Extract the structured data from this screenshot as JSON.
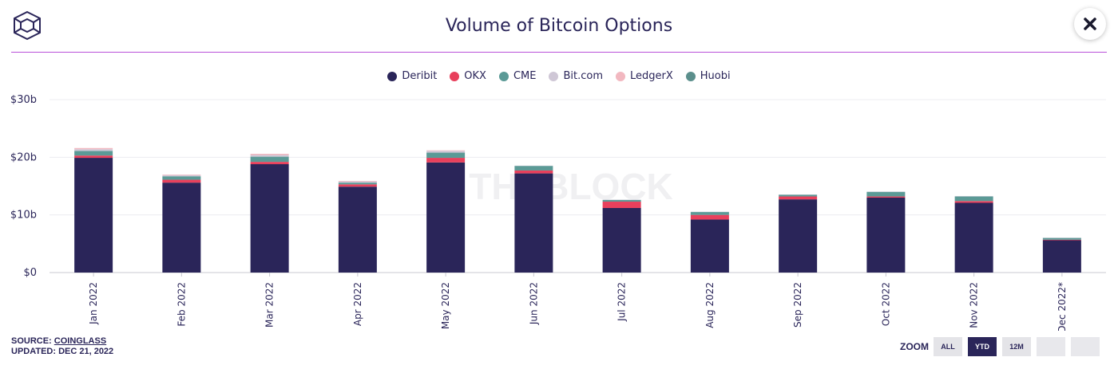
{
  "header": {
    "title": "Volume of Bitcoin Options",
    "logo_icon": "cube-logo-icon",
    "close_icon": "close-icon"
  },
  "watermark": "THEBLOCK",
  "footer": {
    "source_prefix": "SOURCE: ",
    "source_link": "COINGLASS",
    "updated": "UPDATED: DEC 21, 2022"
  },
  "zoom": {
    "label": "ZOOM",
    "buttons": [
      "ALL",
      "YTD",
      "12M",
      "",
      ""
    ],
    "active": "YTD"
  },
  "colors": {
    "deribit": "#2a2559",
    "okx": "#e8405c",
    "cme": "#5b9a96",
    "bitcom": "#cfc7d6",
    "ledgerx": "#f2b8c0",
    "huobi": "#5b8f8c"
  },
  "chart_data": {
    "type": "bar",
    "stacked": true,
    "categories": [
      "Jan 2022",
      "Feb 2022",
      "Mar 2022",
      "Apr 2022",
      "May 2022",
      "Jun 2022",
      "Jul 2022",
      "Aug 2022",
      "Sep 2022",
      "Oct 2022",
      "Nov 2022",
      "Dec 2022*"
    ],
    "series": [
      {
        "name": "Deribit",
        "color": "#2a2559",
        "values": [
          19.9,
          15.6,
          18.8,
          14.9,
          19.1,
          17.2,
          11.2,
          9.2,
          12.7,
          13.0,
          12.1,
          5.6
        ]
      },
      {
        "name": "OKX",
        "color": "#e8405c",
        "values": [
          0.4,
          0.5,
          0.4,
          0.4,
          0.8,
          0.5,
          1.1,
          0.8,
          0.5,
          0.2,
          0.3,
          0.1
        ]
      },
      {
        "name": "CME",
        "color": "#5b9a96",
        "values": [
          0.8,
          0.6,
          0.9,
          0.3,
          0.9,
          0.8,
          0.3,
          0.5,
          0.3,
          0.8,
          0.8,
          0.3
        ]
      },
      {
        "name": "Bit.com",
        "color": "#cfc7d6",
        "values": [
          0.3,
          0.2,
          0.3,
          0.2,
          0.3,
          0.05,
          0.05,
          0.05,
          0.05,
          0.05,
          0.05,
          0.05
        ]
      },
      {
        "name": "LedgerX",
        "color": "#f2b8c0",
        "values": [
          0.2,
          0.1,
          0.2,
          0.1,
          0.1,
          0.0,
          0.0,
          0.0,
          0.0,
          0.0,
          0.0,
          0.0
        ]
      },
      {
        "name": "Huobi",
        "color": "#5b8f8c",
        "values": [
          0.0,
          0.0,
          0.0,
          0.0,
          0.0,
          0.0,
          0.0,
          0.0,
          0.0,
          0.0,
          0.0,
          0.0
        ]
      }
    ],
    "y_ticks": [
      "$0",
      "$10b",
      "$20b",
      "$30b"
    ],
    "y_tick_values": [
      0,
      10,
      20,
      30
    ],
    "ylim": [
      0,
      30
    ],
    "grid": true,
    "legend_position": "top-center"
  }
}
